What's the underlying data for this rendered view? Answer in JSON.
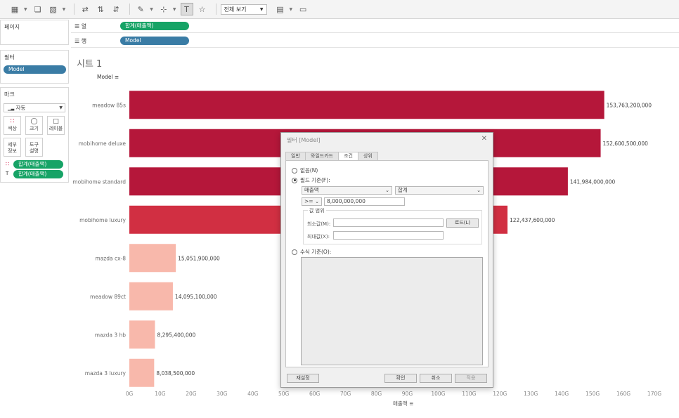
{
  "toolbar": {
    "view_select": "전체 보기"
  },
  "pages_panel": {
    "title": "페이지"
  },
  "filters_panel": {
    "title": "필터",
    "pill": "Model"
  },
  "marks_panel": {
    "title": "마크",
    "mark_type": "자동",
    "cells": [
      {
        "label": "색상",
        "icon": "color-dots-icon"
      },
      {
        "label": "크기",
        "icon": "size-icon"
      },
      {
        "label": "레이블",
        "icon": "label-icon"
      },
      {
        "label": "세부\n정보",
        "icon": "detail-icon"
      },
      {
        "label": "도구\n설명",
        "icon": "tooltip-icon"
      }
    ],
    "pills": [
      "합계(매출액)",
      "합계(매출액)"
    ]
  },
  "shelves": {
    "columns_label": "열",
    "columns_pill": "합계(매출액)",
    "rows_label": "행",
    "rows_pill": "Model"
  },
  "sheet": {
    "title": "시트 1",
    "model_header": "Model",
    "axis_title": "매출액"
  },
  "chart_data": {
    "type": "bar",
    "orientation": "horizontal",
    "categories": [
      "meadow 85s",
      "mobihome deluxe",
      "mobihome standard",
      "mobihome luxury",
      "mazda cx-8",
      "meadow 89ct",
      "mazda 3 hb",
      "mazda 3 luxury"
    ],
    "values": [
      153763200000,
      152600500000,
      141984000000,
      122437600000,
      15051900000,
      14095100000,
      8295400000,
      8038500000
    ],
    "value_labels": [
      "153,763,200,000",
      "152,600,500,000",
      "141,984,000,000",
      "122,437,600,000",
      "15,051,900,000",
      "14,095,100,000",
      "8,295,400,000",
      "8,038,500,000"
    ],
    "bar_colors": [
      "#b5173a",
      "#b5173a",
      "#b5173a",
      "#d12f42",
      "#f8b8ab",
      "#f8b8ab",
      "#f8b8ab",
      "#f8b8ab"
    ],
    "x_ticks": [
      "0G",
      "10G",
      "20G",
      "30G",
      "40G",
      "50G",
      "60G",
      "70G",
      "80G",
      "90G",
      "100G",
      "110G",
      "120G",
      "130G",
      "140G",
      "150G",
      "160G",
      "170G"
    ],
    "xlim": [
      0,
      170000000000
    ],
    "xlabel": "매출액",
    "ylabel": "Model"
  },
  "dialog": {
    "title": "필터 [Model]",
    "tabs": [
      "일반",
      "와일드카드",
      "조건",
      "상위"
    ],
    "active_tab": "조건",
    "radio_none": "없음(N)",
    "radio_field": "필드 기준(F):",
    "field_select": "매출액",
    "agg_select": "합계",
    "operator_select": ">=",
    "value_input": "8,000,000,000",
    "range_group": "값 범위",
    "min_label": "최소값(M):",
    "max_label": "최대값(X):",
    "load_button": "로드(L)",
    "radio_formula": "수식 기준(O):",
    "reset_button": "재설정",
    "ok_button": "확인",
    "cancel_button": "취소",
    "apply_button": "적용"
  }
}
